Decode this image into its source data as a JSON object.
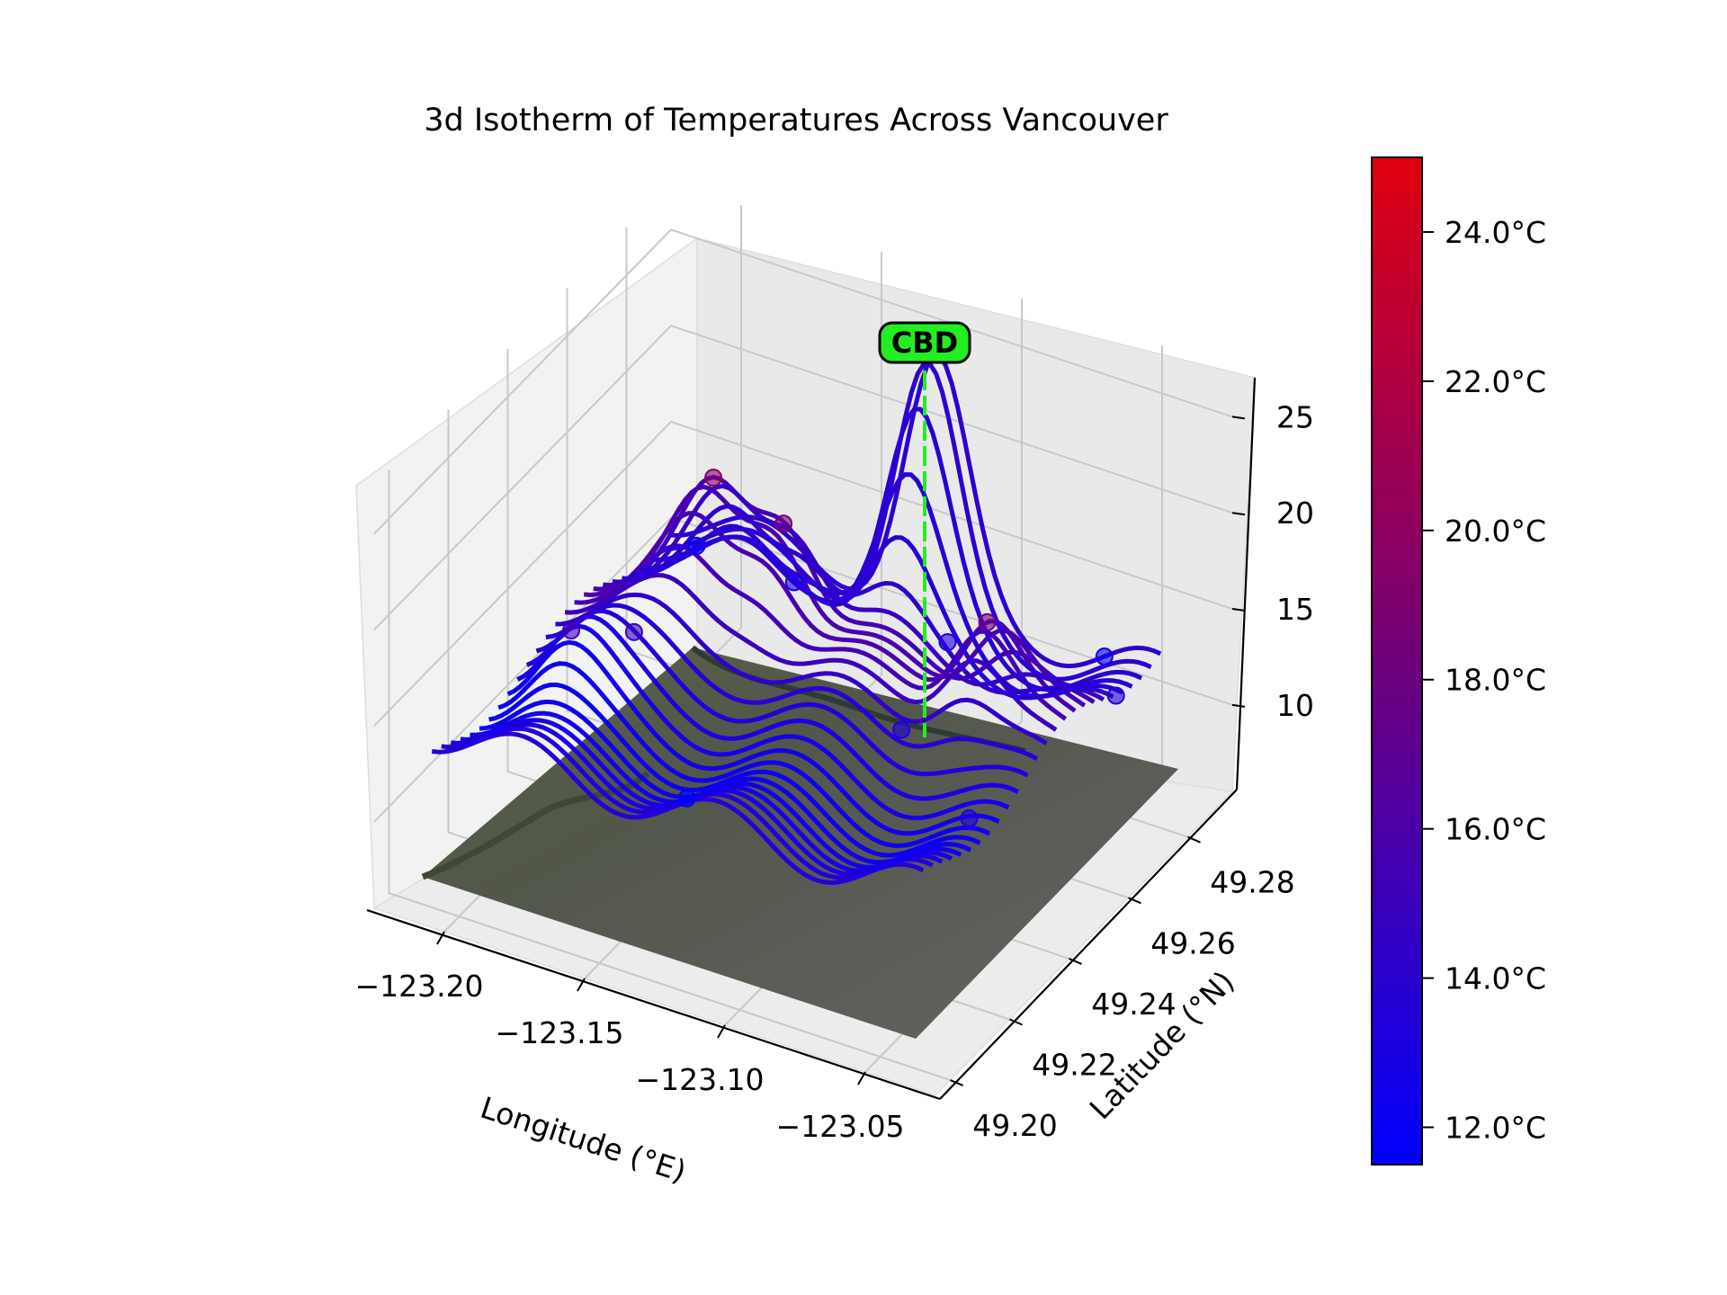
{
  "chart_data": {
    "type": "surface-3d-contour",
    "title": "3d Isotherm of Temperatures Across Vancouver",
    "xlabel": "Longitude (°E)",
    "ylabel": "Latitude (°N)",
    "zlabel": "",
    "x_ticks": [
      "−123.20",
      "−123.15",
      "−123.10",
      "−123.05"
    ],
    "x_tick_values": [
      -123.2,
      -123.15,
      -123.1,
      -123.05
    ],
    "y_ticks": [
      "49.20",
      "49.22",
      "49.24",
      "49.26",
      "49.28"
    ],
    "y_tick_values": [
      49.2,
      49.22,
      49.24,
      49.26,
      49.28
    ],
    "z_ticks": [
      "10",
      "15",
      "20",
      "25"
    ],
    "z_tick_values": [
      10,
      15,
      20,
      25
    ],
    "xlim": [
      -123.225,
      -123.025
    ],
    "ylim": [
      49.195,
      49.295
    ],
    "zlim": [
      5.5,
      27.5
    ],
    "colorbar": {
      "ticks": [
        "12.0°C",
        "14.0°C",
        "16.0°C",
        "18.0°C",
        "20.0°C",
        "22.0°C",
        "24.0°C"
      ],
      "tick_values": [
        12,
        14,
        16,
        18,
        20,
        22,
        24
      ],
      "range": [
        11.5,
        25.0
      ],
      "colors": [
        "#0000ff",
        "#e00010"
      ]
    },
    "annotation": {
      "label": "CBD",
      "x": -123.12,
      "y": 49.283,
      "color": "#22ee22"
    },
    "basemap": "satellite imagery of Vancouver",
    "peaks": [
      {
        "x": -123.12,
        "y": 49.283,
        "z": 25.3
      },
      {
        "x": -123.07,
        "y": 49.255,
        "z": 18.5
      },
      {
        "x": -123.15,
        "y": 49.262,
        "z": 19.0
      },
      {
        "x": -123.175,
        "y": 49.262,
        "z": 18.0
      },
      {
        "x": -123.195,
        "y": 49.233,
        "z": 15.5
      }
    ],
    "base_temperature": 13.0
  }
}
